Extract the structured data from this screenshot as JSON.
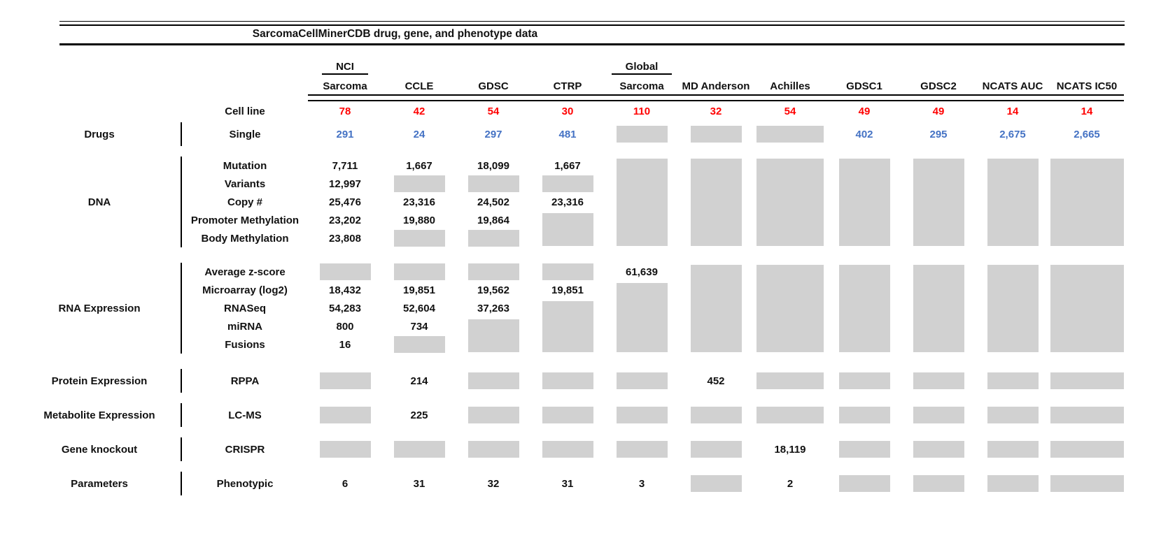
{
  "figure": {
    "kind": "data-availability-table"
  },
  "colors": {
    "cell_line_count_red": "#ff0000",
    "drug_count_blue": "#4472c4",
    "no_data_gray": "#d1d1d1",
    "text_black": "#111111",
    "rule_black": "#000000"
  },
  "chart_data": {
    "type": "table",
    "title": "SarcomaCellMinerCDB drug, gene, and phenotype data",
    "cell_line_label": "Cell line",
    "columns": [
      {
        "id": "nci_sarcoma",
        "label_top": "NCI",
        "label": "Sarcoma",
        "cell_lines": "78"
      },
      {
        "id": "ccle",
        "label_top": "",
        "label": "CCLE",
        "cell_lines": "42"
      },
      {
        "id": "gdsc",
        "label_top": "",
        "label": "GDSC",
        "cell_lines": "54"
      },
      {
        "id": "ctrp",
        "label_top": "",
        "label": "CTRP",
        "cell_lines": "30"
      },
      {
        "id": "global_sarcoma",
        "label_top": "Global",
        "label": "Sarcoma",
        "cell_lines": "110"
      },
      {
        "id": "md_anderson",
        "label_top": "",
        "label": "MD Anderson",
        "cell_lines": "32"
      },
      {
        "id": "achilles",
        "label_top": "",
        "label": "Achilles",
        "cell_lines": "54"
      },
      {
        "id": "gdsc1",
        "label_top": "",
        "label": "GDSC1",
        "cell_lines": "49"
      },
      {
        "id": "gdsc2",
        "label_top": "",
        "label": "GDSC2",
        "cell_lines": "49"
      },
      {
        "id": "ncats_auc",
        "label_top": "",
        "label": "NCATS AUC",
        "cell_lines": "14"
      },
      {
        "id": "ncats_ic50",
        "label_top": "",
        "label": "NCATS IC50",
        "cell_lines": "14"
      }
    ],
    "sections": [
      {
        "category": "Drugs",
        "accent": "blue",
        "rows": [
          {
            "label": "Single",
            "cells": [
              "291",
              "24",
              "297",
              "481",
              "gap",
              "gap",
              "gap",
              "402",
              "295",
              "2,675",
              "2,665"
            ]
          }
        ]
      },
      {
        "category": "DNA",
        "accent": "black",
        "rows": [
          {
            "label": "Mutation",
            "cells": [
              "7,711",
              "1,667",
              "18,099",
              "1,667",
              "gap:5",
              "gap:5",
              "gap:5",
              "gap:5",
              "gap:5",
              "gap:5",
              "gap:5"
            ]
          },
          {
            "label": "Variants",
            "cells": [
              "12,997",
              "gap",
              "gap",
              "gap",
              "",
              "",
              "",
              "",
              "",
              "",
              ""
            ]
          },
          {
            "label": "Copy #",
            "cells": [
              "25,476",
              "23,316",
              "24,502",
              "23,316",
              "",
              "",
              "",
              "",
              "",
              "",
              ""
            ]
          },
          {
            "label": "Promoter Methylation",
            "cells": [
              "23,202",
              "19,880",
              "19,864",
              "gap:2",
              "",
              "",
              "",
              "",
              "",
              "",
              ""
            ]
          },
          {
            "label": "Body Methylation",
            "cells": [
              "23,808",
              "gap",
              "gap",
              "",
              "",
              "",
              "",
              "",
              "",
              "",
              ""
            ]
          }
        ]
      },
      {
        "category": "RNA Expression",
        "accent": "black",
        "rows": [
          {
            "label": "Average z-score",
            "cells": [
              "gap",
              "gap",
              "gap",
              "gap",
              "61,639",
              "gap:5",
              "gap:5",
              "gap:5",
              "gap:5",
              "gap:5",
              "gap:5"
            ]
          },
          {
            "label": "Microarray (log2)",
            "cells": [
              "18,432",
              "19,851",
              "19,562",
              "19,851",
              "gap:4",
              "",
              "",
              "",
              "",
              "",
              ""
            ]
          },
          {
            "label": "RNASeq",
            "cells": [
              "54,283",
              "52,604",
              "37,263",
              "gap:3",
              "",
              "",
              "",
              "",
              "",
              "",
              ""
            ]
          },
          {
            "label": "miRNA",
            "cells": [
              "800",
              "734",
              "gap:2",
              "",
              "",
              "",
              "",
              "",
              "",
              "",
              ""
            ]
          },
          {
            "label": "Fusions",
            "cells": [
              "16",
              "gap",
              "",
              "",
              "",
              "",
              "",
              "",
              "",
              "",
              ""
            ]
          }
        ]
      },
      {
        "category": "Protein Expression",
        "accent": "black",
        "rows": [
          {
            "label": "RPPA",
            "cells": [
              "gap",
              "214",
              "gap",
              "gap",
              "gap",
              "452",
              "gap",
              "gap",
              "gap",
              "gap",
              "gap"
            ]
          }
        ]
      },
      {
        "category": "Metabolite Expression",
        "accent": "black",
        "rows": [
          {
            "label": "LC-MS",
            "cells": [
              "gap",
              "225",
              "gap",
              "gap",
              "gap",
              "gap",
              "gap",
              "gap",
              "gap",
              "gap",
              "gap"
            ]
          }
        ]
      },
      {
        "category": "Gene knockout",
        "accent": "black",
        "rows": [
          {
            "label": "CRISPR",
            "cells": [
              "gap",
              "gap",
              "gap",
              "gap",
              "gap",
              "gap",
              "18,119",
              "gap",
              "gap",
              "gap",
              "gap"
            ]
          }
        ]
      },
      {
        "category": "Parameters",
        "accent": "black",
        "rows": [
          {
            "label": "Phenotypic",
            "cells": [
              "6",
              "31",
              "32",
              "31",
              "3",
              "gap",
              "2",
              "gap",
              "gap",
              "gap",
              "gap"
            ]
          }
        ]
      }
    ]
  }
}
